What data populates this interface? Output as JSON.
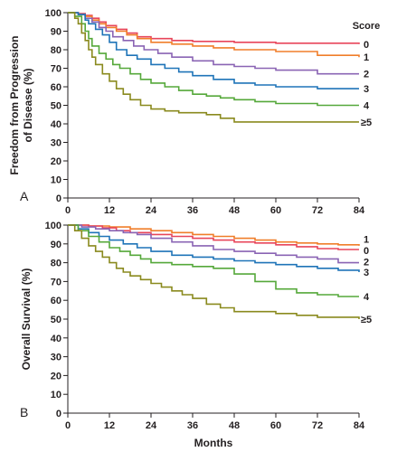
{
  "figure": {
    "x_axis_title": "Months"
  },
  "chart_data": [
    {
      "type": "line",
      "panel": "A",
      "ylabel": "Freedom from Progression of Disease (%)",
      "ylabel_lines": [
        "Freedom from Progression",
        "of Disease (%)"
      ],
      "xlabel": "",
      "xlim": [
        0,
        84
      ],
      "ylim": [
        0,
        100
      ],
      "x_ticks": [
        0,
        12,
        24,
        36,
        48,
        60,
        72,
        84
      ],
      "y_ticks": [
        0,
        10,
        20,
        30,
        40,
        50,
        60,
        70,
        80,
        90,
        100
      ],
      "grid": false,
      "legend_title": "Score",
      "legend_placement": "right",
      "step": true,
      "series": [
        {
          "name": "0",
          "color": "#e8455a",
          "label_y": 83,
          "x": [
            0,
            3,
            5,
            7,
            9,
            11,
            14,
            17,
            20,
            24,
            30,
            36,
            48,
            60,
            84
          ],
          "y": [
            100,
            99.5,
            98.5,
            97,
            95,
            93,
            91,
            89,
            87,
            86,
            85,
            84.5,
            84,
            83.5,
            83
          ]
        },
        {
          "name": "1",
          "color": "#f07e2a",
          "label_y": 76,
          "x": [
            0,
            3,
            5,
            7,
            9,
            11,
            14,
            17,
            20,
            24,
            30,
            36,
            42,
            48,
            60,
            72,
            84
          ],
          "y": [
            100,
            99,
            98,
            96,
            94,
            92,
            90,
            88,
            86,
            84,
            83,
            82,
            81,
            80,
            79,
            77,
            76
          ]
        },
        {
          "name": "2",
          "color": "#8a64b4",
          "label_y": 67,
          "x": [
            0,
            3,
            5,
            7,
            9,
            11,
            13,
            16,
            19,
            22,
            26,
            30,
            36,
            42,
            48,
            54,
            60,
            72,
            84
          ],
          "y": [
            100,
            99,
            97,
            95,
            92,
            90,
            87,
            85,
            82,
            80,
            78,
            76,
            74,
            72,
            71,
            70,
            69,
            67,
            67
          ]
        },
        {
          "name": "3",
          "color": "#1f74b8",
          "label_y": 59,
          "x": [
            0,
            3,
            5,
            6,
            8,
            10,
            12,
            14,
            17,
            20,
            24,
            28,
            32,
            36,
            42,
            48,
            54,
            60,
            72,
            84
          ],
          "y": [
            100,
            99,
            96,
            94,
            91,
            88,
            84,
            80,
            77,
            75,
            72,
            70,
            68,
            66,
            64,
            62,
            61,
            60,
            59,
            59
          ]
        },
        {
          "name": "4",
          "color": "#55a83a",
          "label_y": 50,
          "x": [
            0,
            2,
            4,
            5,
            6,
            7,
            9,
            11,
            13,
            15,
            18,
            21,
            24,
            28,
            32,
            36,
            40,
            44,
            48,
            54,
            60,
            72,
            84
          ],
          "y": [
            100,
            98,
            94,
            90,
            86,
            82,
            78,
            75,
            72,
            70,
            67,
            64,
            62,
            60,
            58,
            56,
            55,
            54,
            53,
            52,
            51,
            50,
            50
          ]
        },
        {
          "name": "≥5",
          "color": "#8a8a1e",
          "label_y": 41,
          "x": [
            0,
            2,
            3,
            4,
            5,
            6,
            7,
            8,
            10,
            12,
            14,
            16,
            18,
            21,
            24,
            28,
            32,
            36,
            40,
            44,
            48,
            60,
            84
          ],
          "y": [
            100,
            97,
            94,
            89,
            85,
            80,
            76,
            72,
            67,
            63,
            59,
            56,
            53,
            50,
            48,
            47,
            46,
            46,
            45,
            43,
            41,
            41,
            41
          ]
        }
      ]
    },
    {
      "type": "line",
      "panel": "B",
      "ylabel": "Overall Survival (%)",
      "xlabel": "Months",
      "xlim": [
        0,
        84
      ],
      "ylim": [
        0,
        100
      ],
      "x_ticks": [
        0,
        12,
        24,
        36,
        48,
        60,
        72,
        84
      ],
      "y_ticks": [
        0,
        10,
        20,
        30,
        40,
        50,
        60,
        70,
        80,
        90,
        100
      ],
      "grid": false,
      "legend_placement": "right",
      "step": true,
      "series": [
        {
          "name": "1",
          "color": "#f07e2a",
          "label_y": 92.5,
          "x": [
            0,
            6,
            12,
            18,
            24,
            30,
            36,
            42,
            48,
            54,
            60,
            66,
            72,
            78,
            84
          ],
          "y": [
            100,
            99.5,
            99,
            98,
            97,
            96,
            95,
            94,
            93,
            92,
            91,
            90.5,
            90,
            89.5,
            89
          ]
        },
        {
          "name": "0",
          "color": "#e8455a",
          "label_y": 86.5,
          "x": [
            0,
            6,
            10,
            14,
            18,
            24,
            30,
            36,
            42,
            48,
            54,
            60,
            66,
            72,
            78,
            84
          ],
          "y": [
            100,
            99.5,
            98.5,
            97,
            96,
            95,
            94,
            93,
            92,
            91,
            90.5,
            89.5,
            88.5,
            87.5,
            87,
            87
          ]
        },
        {
          "name": "2",
          "color": "#8a64b4",
          "label_y": 80.5,
          "x": [
            0,
            4,
            8,
            12,
            16,
            20,
            24,
            30,
            36,
            42,
            48,
            54,
            60,
            66,
            72,
            78,
            84
          ],
          "y": [
            100,
            99,
            98,
            97,
            96,
            95,
            93,
            91,
            89,
            87,
            86,
            85,
            84,
            83,
            82,
            80,
            80
          ]
        },
        {
          "name": "3",
          "color": "#1f74b8",
          "label_y": 75,
          "x": [
            0,
            3,
            6,
            9,
            12,
            16,
            20,
            24,
            30,
            36,
            42,
            48,
            54,
            60,
            66,
            72,
            78,
            84
          ],
          "y": [
            100,
            98,
            96,
            94,
            92,
            90,
            88,
            86,
            84,
            83,
            82,
            81,
            80,
            79,
            78,
            77,
            76,
            75
          ]
        },
        {
          "name": "4",
          "color": "#55a83a",
          "label_y": 62,
          "x": [
            0,
            3,
            6,
            9,
            12,
            15,
            18,
            21,
            24,
            30,
            36,
            42,
            48,
            54,
            60,
            66,
            72,
            78,
            84
          ],
          "y": [
            100,
            97,
            94,
            91,
            88,
            86,
            84,
            82,
            80,
            79,
            78,
            77,
            74,
            70,
            66,
            64,
            63,
            62,
            62
          ]
        },
        {
          "name": "≥5",
          "color": "#8a8a1e",
          "label_y": 50,
          "x": [
            0,
            2,
            4,
            6,
            8,
            10,
            12,
            14,
            16,
            18,
            21,
            24,
            27,
            30,
            33,
            36,
            40,
            44,
            48,
            54,
            60,
            66,
            72,
            78,
            84
          ],
          "y": [
            100,
            97,
            93,
            89,
            86,
            83,
            80,
            77,
            75,
            73,
            71,
            69,
            67,
            65,
            63,
            61,
            58,
            56,
            54,
            54,
            53,
            52,
            51,
            51,
            50
          ]
        }
      ]
    }
  ]
}
